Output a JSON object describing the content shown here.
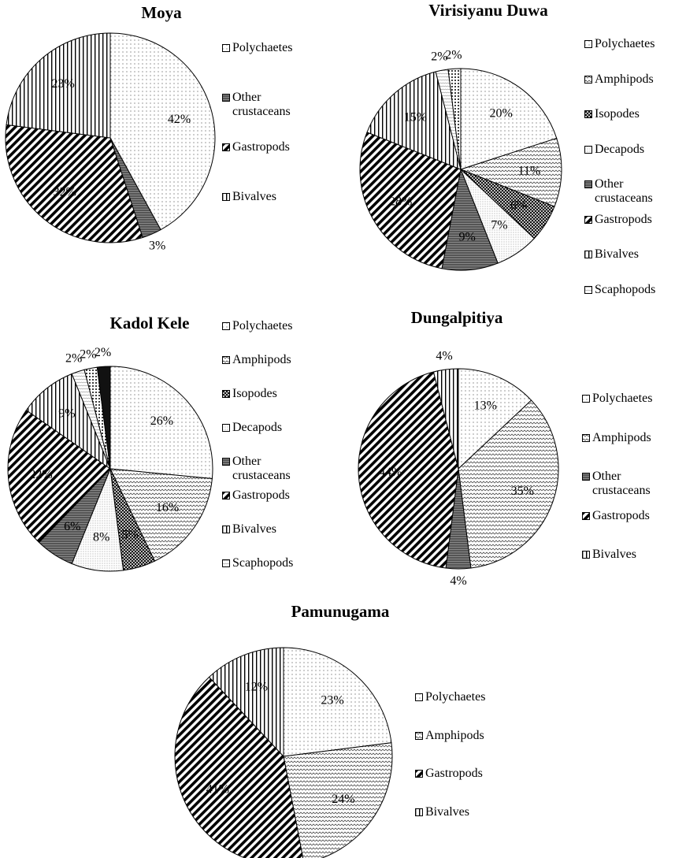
{
  "chart_data": [
    {
      "type": "pie",
      "title": "Moya",
      "categories": [
        "Polychaetes",
        "Other crustaceans",
        "Gastropods",
        "Bivalves"
      ],
      "values": [
        42,
        3,
        32,
        23
      ],
      "value_labels": [
        "42%",
        "3%",
        "32%",
        "23%"
      ],
      "patterns": [
        "dots",
        "dark",
        "diagonal",
        "vertical"
      ]
    },
    {
      "type": "pie",
      "title": "Virisiyanu Duwa",
      "categories": [
        "Polychaetes",
        "Amphipods",
        "Isopodes",
        "Decapods",
        "Other crustaceans",
        "Gastropods",
        "Bivalves",
        "Scaphopods",
        null
      ],
      "values": [
        20,
        11,
        6,
        7,
        9,
        28,
        15,
        2,
        2
      ],
      "value_labels": [
        "20%",
        "11%",
        "6%",
        "7%",
        "9%",
        "28%",
        "15%",
        "2%",
        "2%"
      ],
      "patterns": [
        "dots",
        "waves",
        "cross",
        "finedots",
        "dark",
        "diagonal",
        "vertical",
        "lightwave",
        "bigdots"
      ]
    },
    {
      "type": "pie",
      "title": "Kadol Kele",
      "categories": [
        "Polychaetes",
        "Amphipods",
        "Isopodes",
        "Decapods",
        "Other crustaceans",
        "Gastropods",
        "Bivalves",
        "Scaphopods",
        null,
        null
      ],
      "values": [
        26,
        16,
        5,
        8,
        6,
        22,
        9,
        2,
        2,
        2
      ],
      "value_labels": [
        "26%",
        "16%",
        "5%",
        "8%",
        "6%",
        "22%",
        "9%",
        "2%",
        "2%",
        "2%"
      ],
      "patterns": [
        "dots",
        "waves",
        "cross",
        "finedots",
        "dark",
        "diagonal",
        "vertical",
        "lightwave",
        "bigdots",
        "black"
      ]
    },
    {
      "type": "pie",
      "title": "Dungalpitiya",
      "categories": [
        "Polychaetes",
        "Amphipods",
        "Other crustaceans",
        "Gastropods",
        "Bivalves"
      ],
      "values": [
        13,
        35,
        4,
        44,
        4
      ],
      "value_labels": [
        "13%",
        "35%",
        "4%",
        "44%",
        "4%"
      ],
      "patterns": [
        "dots",
        "waves",
        "dark",
        "diagonal",
        "vertical"
      ]
    },
    {
      "type": "pie",
      "title": "Pamunugama",
      "categories": [
        "Polychaetes",
        "Amphipods",
        "Gastropods",
        "Bivalves"
      ],
      "values": [
        23,
        24,
        41,
        12
      ],
      "value_labels": [
        "23%",
        "24%",
        "41%",
        "12%"
      ],
      "patterns": [
        "dots",
        "waves",
        "diagonal",
        "vertical"
      ]
    }
  ]
}
